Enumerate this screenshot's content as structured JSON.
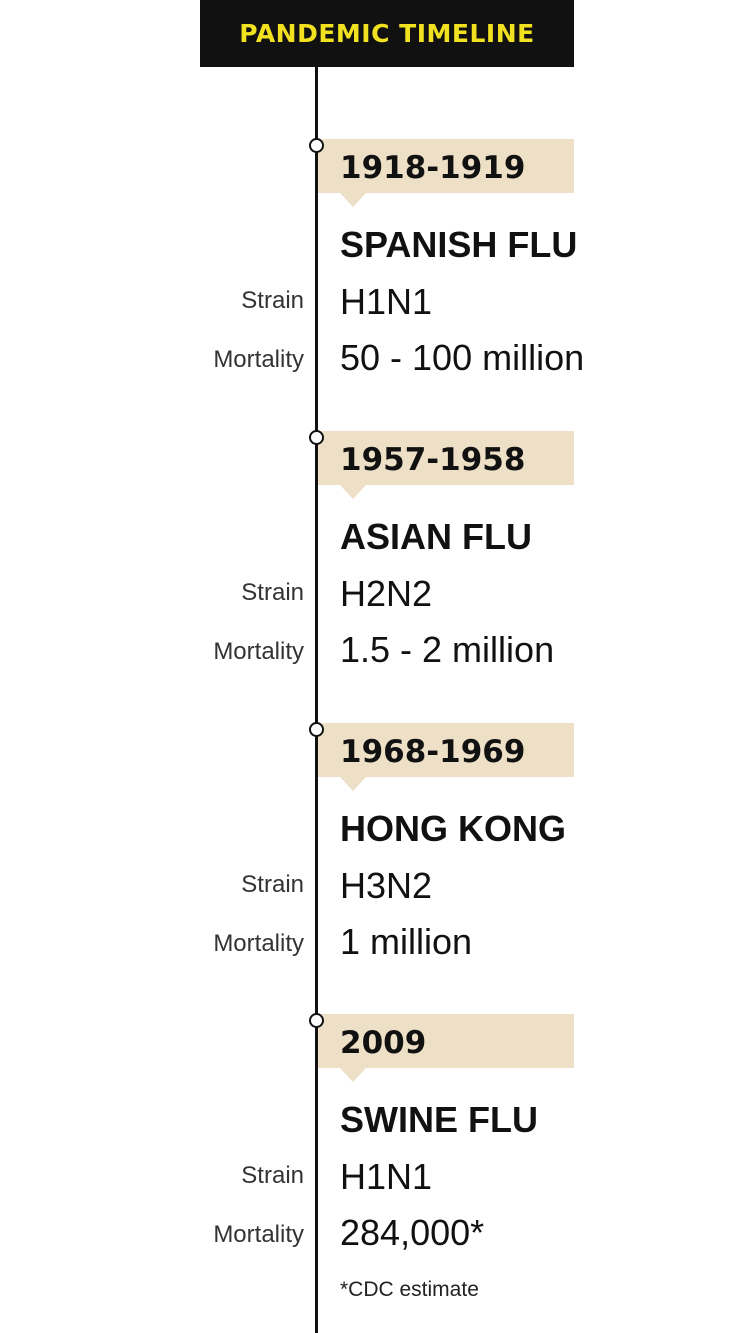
{
  "header": {
    "title": "PANDEMIC TIMELINE"
  },
  "labels": {
    "strain": "Strain",
    "mortality": "Mortality"
  },
  "events": [
    {
      "years": "1918-1919",
      "name": "SPANISH FLU",
      "strain": "H1N1",
      "mortality": "50 - 100 million"
    },
    {
      "years": "1957-1958",
      "name": "ASIAN FLU",
      "strain": "H2N2",
      "mortality": "1.5 - 2 million"
    },
    {
      "years": "1968-1969",
      "name": "HONG KONG",
      "strain": "H3N2",
      "mortality": "1 million"
    },
    {
      "years": "2009",
      "name": "SWINE FLU",
      "strain": "H1N1",
      "mortality": "284,000*"
    }
  ],
  "footnote": "*CDC estimate",
  "colors": {
    "header_background": "#111111",
    "header_text": "#f2e11f",
    "year_band": "#ede0c6",
    "line": "#111111"
  }
}
